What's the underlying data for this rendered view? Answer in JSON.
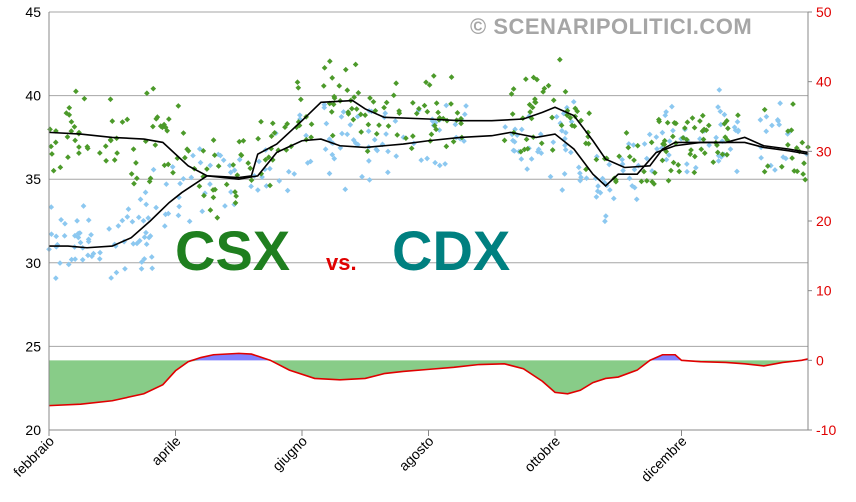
{
  "watermark": "© SCENARIPOLITICI.COM",
  "labels": {
    "left": "CSX",
    "middle": "vs.",
    "right": "CDX"
  },
  "colors": {
    "csx_points": "#4c9a2a",
    "cdx_points": "#8cc8f0",
    "line": "#000000",
    "diff_line": "#e00000",
    "fill_negative": "#88cc88",
    "fill_positive": "#8080ff",
    "right_axis": "#e00000"
  },
  "chart_data": {
    "type": "scatter",
    "x_axis": {
      "categories": [
        "febbraio",
        "aprile",
        "giugno",
        "agosto",
        "ottobre",
        "dicembre"
      ],
      "range_months": [
        0,
        12
      ]
    },
    "y_left": {
      "min": 20,
      "max": 45,
      "ticks": [
        20,
        25,
        30,
        35,
        40,
        45
      ]
    },
    "y_right": {
      "min": -10,
      "max": 50,
      "ticks": [
        -10,
        0,
        10,
        20,
        30,
        40,
        50
      ]
    },
    "grid": true,
    "series": [
      {
        "kind": "trend_line_left_axis",
        "points": [
          [
            0,
            37.8
          ],
          [
            0.5,
            37.7
          ],
          [
            1,
            37.5
          ],
          [
            1.5,
            37.4
          ],
          [
            1.8,
            37.2
          ],
          [
            2,
            36.5
          ],
          [
            2.2,
            35.8
          ],
          [
            2.5,
            35.2
          ],
          [
            3,
            35.1
          ],
          [
            3.2,
            35.2
          ],
          [
            3.3,
            36.5
          ],
          [
            3.6,
            37.1
          ],
          [
            4,
            38.5
          ],
          [
            4.3,
            39.6
          ],
          [
            4.8,
            39.7
          ],
          [
            5,
            39.2
          ],
          [
            5.3,
            38.7
          ],
          [
            6,
            38.6
          ],
          [
            6.5,
            38.5
          ],
          [
            7,
            38.5
          ],
          [
            7.5,
            38.6
          ],
          [
            7.8,
            39.0
          ],
          [
            8,
            39.3
          ],
          [
            8.3,
            38.8
          ],
          [
            8.6,
            37.3
          ],
          [
            8.8,
            36.2
          ],
          [
            9.1,
            35.7
          ],
          [
            9.5,
            35.8
          ],
          [
            9.7,
            36.8
          ],
          [
            9.9,
            37.2
          ],
          [
            10.3,
            37.2
          ],
          [
            10.7,
            37.2
          ],
          [
            11,
            37.5
          ],
          [
            11.3,
            37.0
          ],
          [
            11.7,
            36.8
          ],
          [
            12,
            36.6
          ]
        ]
      },
      {
        "kind": "trend_line_left_axis",
        "points": [
          [
            0,
            31.0
          ],
          [
            0.3,
            31.0
          ],
          [
            0.6,
            30.9
          ],
          [
            1,
            31.0
          ],
          [
            1.3,
            31.5
          ],
          [
            1.6,
            32.5
          ],
          [
            1.9,
            33.6
          ],
          [
            2.1,
            34.2
          ],
          [
            2.3,
            34.7
          ],
          [
            2.5,
            35.2
          ],
          [
            3,
            35.0
          ],
          [
            3.3,
            35.2
          ],
          [
            3.6,
            36.6
          ],
          [
            4,
            37.3
          ],
          [
            4.3,
            37.4
          ],
          [
            4.6,
            37.0
          ],
          [
            5,
            36.9
          ],
          [
            5.3,
            37.0
          ],
          [
            5.6,
            37.1
          ],
          [
            6,
            37.3
          ],
          [
            6.5,
            37.5
          ],
          [
            7,
            37.6
          ],
          [
            7.3,
            37.8
          ],
          [
            7.7,
            37.5
          ],
          [
            8,
            37.7
          ],
          [
            8.3,
            36.8
          ],
          [
            8.6,
            35.3
          ],
          [
            8.8,
            34.6
          ],
          [
            9,
            35.3
          ],
          [
            9.3,
            35.3
          ],
          [
            9.6,
            36.6
          ],
          [
            9.9,
            37.0
          ],
          [
            10.3,
            37.2
          ],
          [
            10.7,
            37.2
          ],
          [
            11,
            37.2
          ],
          [
            11.3,
            36.9
          ],
          [
            11.7,
            36.7
          ],
          [
            12,
            36.5
          ]
        ]
      },
      {
        "kind": "difference_right_axis",
        "points": [
          [
            0,
            -6.5
          ],
          [
            0.5,
            -6.3
          ],
          [
            1,
            -5.8
          ],
          [
            1.5,
            -4.8
          ],
          [
            1.8,
            -3.5
          ],
          [
            2,
            -1.5
          ],
          [
            2.2,
            -0.2
          ],
          [
            2.4,
            0.4
          ],
          [
            2.6,
            0.8
          ],
          [
            3,
            1.0
          ],
          [
            3.2,
            0.9
          ],
          [
            3.3,
            0.6
          ],
          [
            3.5,
            0.0
          ],
          [
            3.8,
            -1.4
          ],
          [
            4.2,
            -2.6
          ],
          [
            4.6,
            -2.8
          ],
          [
            5,
            -2.6
          ],
          [
            5.3,
            -1.9
          ],
          [
            5.6,
            -1.6
          ],
          [
            6,
            -1.3
          ],
          [
            6.4,
            -1.0
          ],
          [
            6.8,
            -0.6
          ],
          [
            7.2,
            -0.5
          ],
          [
            7.5,
            -1.2
          ],
          [
            7.8,
            -3.0
          ],
          [
            8,
            -4.6
          ],
          [
            8.2,
            -4.8
          ],
          [
            8.4,
            -4.3
          ],
          [
            8.6,
            -3.2
          ],
          [
            8.8,
            -2.6
          ],
          [
            9,
            -2.4
          ],
          [
            9.3,
            -1.4
          ],
          [
            9.5,
            0.0
          ],
          [
            9.7,
            0.8
          ],
          [
            9.9,
            0.8
          ],
          [
            10,
            0.0
          ],
          [
            10.3,
            -0.2
          ],
          [
            10.7,
            -0.3
          ],
          [
            11,
            -0.5
          ],
          [
            11.3,
            -0.8
          ],
          [
            11.6,
            -0.3
          ],
          [
            11.9,
            0.0
          ],
          [
            12,
            0.2
          ]
        ]
      },
      {
        "kind": "scatter_left_axis",
        "name_hint": "CSX",
        "count": 320,
        "ymin": 32.0,
        "ymax": 43.5
      },
      {
        "kind": "scatter_left_axis",
        "name_hint": "CDX",
        "count": 300,
        "ymin": 28.5,
        "ymax": 40.5
      }
    ]
  }
}
